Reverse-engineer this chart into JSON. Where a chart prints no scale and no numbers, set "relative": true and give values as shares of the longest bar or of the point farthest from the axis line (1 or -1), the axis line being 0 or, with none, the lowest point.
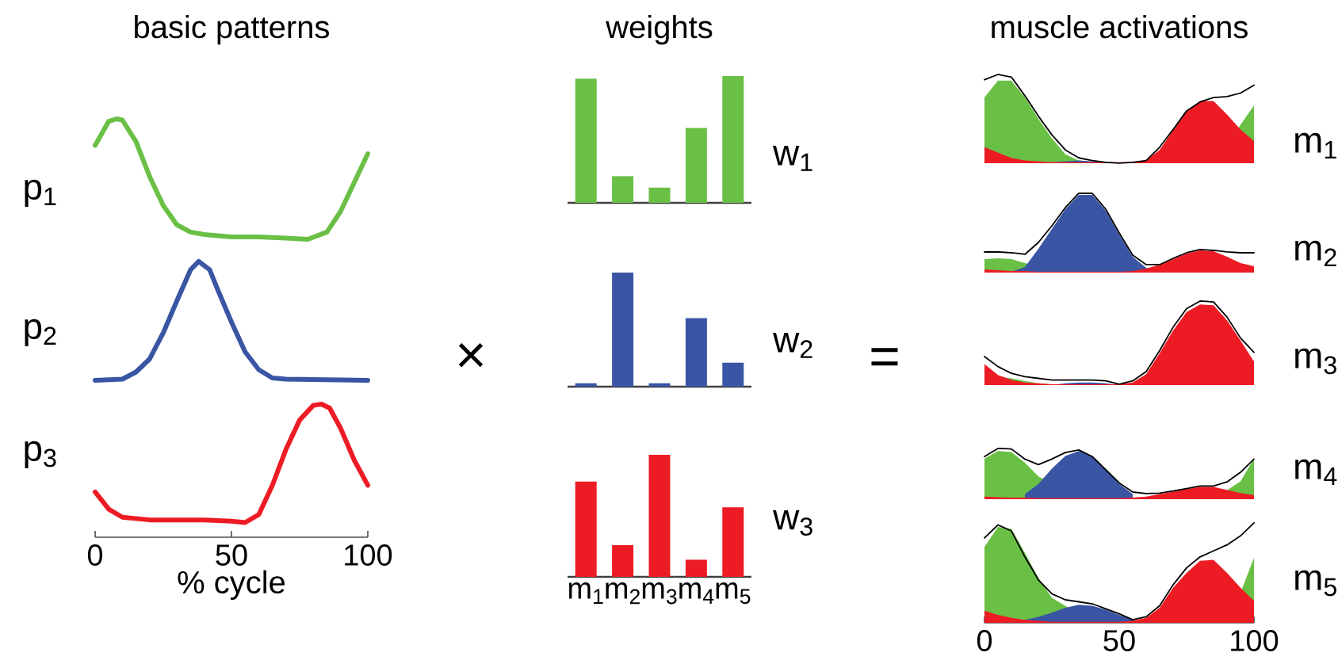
{
  "chart_data": [
    {
      "type": "line",
      "title": "basic patterns",
      "ylabel": "p$_{1}$",
      "relative": true,
      "xlim": [
        0,
        100
      ],
      "tick_labels": false,
      "x": [
        0,
        5,
        8,
        10,
        15,
        20,
        25,
        30,
        35,
        40,
        50,
        60,
        70,
        78,
        85,
        90,
        95,
        100
      ],
      "series": [
        {
          "color": "#6abf45",
          "values": [
            0.78,
            0.98,
            1,
            0.99,
            0.81,
            0.52,
            0.28,
            0.12,
            0.06,
            0.04,
            0.02,
            0.02,
            0.01,
            0,
            0.06,
            0.23,
            0.47,
            0.71
          ]
        }
      ]
    },
    {
      "type": "line",
      "ylabel": "p$_{2}$",
      "relative": true,
      "xlim": [
        0,
        100
      ],
      "tick_labels": false,
      "x": [
        0,
        10,
        15,
        20,
        25,
        30,
        35,
        38,
        42,
        45,
        50,
        55,
        60,
        65,
        70,
        100
      ],
      "series": [
        {
          "color": "#3a55a4",
          "values": [
            0,
            0.01,
            0.07,
            0.18,
            0.4,
            0.67,
            0.93,
            1,
            0.93,
            0.76,
            0.49,
            0.24,
            0.09,
            0.02,
            0.01,
            0
          ]
        }
      ]
    },
    {
      "type": "line",
      "ylabel": "p$_{3}$",
      "xlabel": "% cycle",
      "relative": true,
      "xlim": [
        0,
        100
      ],
      "xticks": [
        0,
        50,
        100
      ],
      "tick_labels": "x",
      "x": [
        0,
        5,
        10,
        20,
        40,
        50,
        55,
        60,
        65,
        70,
        75,
        80,
        83,
        86,
        90,
        95,
        100
      ],
      "series": [
        {
          "color": "#ed1c24",
          "values": [
            0.34,
            0.21,
            0.15,
            0.13,
            0.13,
            0.12,
            0.11,
            0.17,
            0.39,
            0.66,
            0.88,
            0.99,
            1,
            0.97,
            0.82,
            0.58,
            0.39
          ]
        }
      ]
    },
    {
      "type": "bar",
      "title": "weights",
      "y2label": "w$_{1}$",
      "relative": true,
      "categories": [
        null,
        null,
        null,
        null,
        null
      ],
      "color": "#6abf45",
      "values": [
        0.98,
        0.21,
        0.12,
        0.59,
        1
      ]
    },
    {
      "type": "bar",
      "y2label": "w$_{2}$",
      "annotations": [
        "×"
      ],
      "relative": true,
      "categories": [
        null,
        null,
        null,
        null,
        null
      ],
      "color": "#3a55a4",
      "values": [
        0.03,
        1,
        0.03,
        0.6,
        0.21
      ]
    },
    {
      "type": "bar",
      "y2label": "w$_{3}$",
      "relative": true,
      "tick_labels": "x",
      "categories": [
        "m$_{1}$",
        "m$_{2}$",
        "m$_{3}$",
        "m$_{4}$",
        "m$_{5}$"
      ],
      "color": "#ed1c24",
      "values": [
        0.78,
        0.26,
        1,
        0.14,
        0.57
      ]
    },
    {
      "type": "area",
      "title": "muscle activations",
      "y2label": "m$_{1}$",
      "relative": true,
      "xlim": [
        0,
        100
      ],
      "tick_labels": false,
      "x": [
        0,
        5,
        10,
        15,
        20,
        25,
        30,
        35,
        40,
        45,
        50,
        55,
        60,
        65,
        70,
        75,
        80,
        85,
        90,
        95,
        100
      ],
      "series": [
        {
          "color": "#6abf45",
          "x": [
            0,
            5,
            10,
            15,
            20,
            25,
            30,
            35,
            40,
            45,
            50,
            55,
            60,
            65,
            70,
            75,
            80,
            85,
            100
          ],
          "values": [
            0.74,
            0.93,
            0.93,
            0.74,
            0.5,
            0.28,
            0.1,
            0.03,
            0.01,
            0,
            0,
            0,
            0,
            0,
            0,
            0,
            0,
            0,
            0.65
          ]
        },
        {
          "color": "#3a55a4",
          "values": [
            0,
            0,
            0,
            0,
            0,
            0.01,
            0.02,
            0.03,
            0.02,
            0.01,
            0,
            0,
            0,
            0,
            0,
            0,
            0,
            0,
            0,
            0,
            0
          ]
        },
        {
          "color": "#ed1c24",
          "values": [
            0.18,
            0.12,
            0.06,
            0.03,
            0.02,
            0.01,
            0.01,
            0.01,
            0.01,
            0.01,
            0.01,
            0.01,
            0.03,
            0.15,
            0.37,
            0.58,
            0.7,
            0.7,
            0.55,
            0.38,
            0.25
          ]
        },
        {
          "type": "line",
          "color": "#000000",
          "values": [
            0.94,
            1,
            0.97,
            0.76,
            0.53,
            0.32,
            0.15,
            0.06,
            0.03,
            0.01,
            0,
            0.01,
            0.03,
            0.18,
            0.38,
            0.59,
            0.69,
            0.74,
            0.75,
            0.79,
            0.88
          ]
        }
      ]
    },
    {
      "type": "area",
      "y2label": "m$_{2}$",
      "relative": true,
      "xlim": [
        0,
        100
      ],
      "tick_labels": false,
      "x": [
        0,
        5,
        10,
        15,
        20,
        25,
        30,
        35,
        40,
        45,
        50,
        55,
        60,
        65,
        70,
        75,
        80,
        85,
        90,
        95,
        100
      ],
      "series": [
        {
          "color": "#6abf45",
          "x": [
            0,
            5,
            10,
            15,
            30,
            35,
            40,
            45,
            50,
            55,
            60,
            65,
            70,
            75,
            80,
            85,
            90,
            95,
            100
          ],
          "values": [
            0.17,
            0.18,
            0.17,
            0.12,
            0,
            0,
            0,
            0,
            0,
            0,
            0,
            0,
            0,
            0,
            0,
            0,
            0,
            0.02,
            0.05
          ]
        },
        {
          "color": "#3a55a4",
          "values": [
            0,
            0,
            0.01,
            0.07,
            0.3,
            0.55,
            0.8,
            0.98,
            0.98,
            0.78,
            0.48,
            0.2,
            0.06,
            0.01,
            0,
            0,
            0,
            0,
            0,
            0,
            0
          ]
        },
        {
          "color": "#ed1c24",
          "values": [
            0.04,
            0.03,
            0.02,
            0.02,
            0.01,
            0.01,
            0.01,
            0.01,
            0.01,
            0.01,
            0.01,
            0.02,
            0.05,
            0.1,
            0.17,
            0.24,
            0.28,
            0.27,
            0.2,
            0.12,
            0.08
          ]
        },
        {
          "type": "line",
          "color": "#000000",
          "values": [
            0.26,
            0.26,
            0.25,
            0.23,
            0.38,
            0.59,
            0.82,
            1,
            1,
            0.8,
            0.5,
            0.22,
            0.1,
            0.1,
            0.18,
            0.25,
            0.29,
            0.28,
            0.26,
            0.25,
            0.25
          ]
        }
      ]
    },
    {
      "type": "area",
      "y2label": "m$_{3}$",
      "annotations": [
        "="
      ],
      "relative": true,
      "xlim": [
        0,
        100
      ],
      "tick_labels": false,
      "x": [
        0,
        5,
        10,
        15,
        20,
        25,
        30,
        35,
        40,
        45,
        50,
        55,
        60,
        65,
        70,
        75,
        80,
        85,
        90,
        95,
        100
      ],
      "series": [
        {
          "color": "#6abf45",
          "values": [
            0.1,
            0.1,
            0.08,
            0.05,
            0.02,
            0.01,
            0,
            0,
            0,
            0,
            0,
            0,
            0,
            0,
            0,
            0,
            0,
            0,
            0,
            0,
            0
          ]
        },
        {
          "color": "#3a55a4",
          "values": [
            0,
            0,
            0,
            0,
            0,
            0,
            0.02,
            0.03,
            0.03,
            0.02,
            0,
            0,
            0,
            0,
            0,
            0,
            0,
            0,
            0,
            0,
            0
          ]
        },
        {
          "color": "#ed1c24",
          "values": [
            0.25,
            0.12,
            0.06,
            0.03,
            0.02,
            0.01,
            0.01,
            0.01,
            0.01,
            0.01,
            0.01,
            0.03,
            0.13,
            0.38,
            0.65,
            0.87,
            0.96,
            0.95,
            0.77,
            0.53,
            0.28
          ]
        },
        {
          "type": "line",
          "color": "#000000",
          "values": [
            0.34,
            0.22,
            0.14,
            0.1,
            0.08,
            0.06,
            0.06,
            0.06,
            0.06,
            0.05,
            0.01,
            0.05,
            0.16,
            0.41,
            0.69,
            0.91,
            1,
            0.99,
            0.81,
            0.56,
            0.39
          ]
        }
      ]
    },
    {
      "type": "area",
      "y2label": "m$_{4}$",
      "relative": true,
      "xlim": [
        0,
        100
      ],
      "tick_labels": false,
      "x": [
        0,
        5,
        10,
        15,
        20,
        25,
        30,
        35,
        40,
        45,
        50,
        55,
        60,
        65,
        70,
        75,
        80,
        85,
        90,
        95,
        100
      ],
      "series": [
        {
          "color": "#6abf45",
          "x": [
            0,
            5,
            10,
            15,
            20,
            35,
            40,
            45,
            50,
            55,
            60,
            65,
            70,
            75,
            80,
            85,
            95,
            100
          ],
          "values": [
            0.8,
            0.95,
            0.93,
            0.72,
            0.45,
            0.02,
            0,
            0,
            0,
            0,
            0,
            0,
            0,
            0,
            0,
            0,
            0.35,
            0.8
          ]
        },
        {
          "color": "#3a55a4",
          "x": [
            15,
            20,
            25,
            30,
            35,
            40,
            45,
            50,
            55
          ],
          "values": [
            0.1,
            0.3,
            0.6,
            0.85,
            0.95,
            0.85,
            0.58,
            0.3,
            0.1
          ]
        },
        {
          "color": "#ed1c24",
          "values": [
            0.05,
            0.04,
            0.03,
            0.03,
            0.02,
            0.02,
            0.02,
            0.02,
            0.02,
            0.02,
            0.02,
            0.03,
            0.05,
            0.1,
            0.15,
            0.2,
            0.24,
            0.24,
            0.18,
            0.12,
            0.08
          ]
        },
        {
          "type": "line",
          "color": "#000000",
          "values": [
            0.84,
            1,
            0.99,
            0.79,
            0.68,
            0.79,
            0.92,
            0.97,
            0.84,
            0.58,
            0.32,
            0.14,
            0.11,
            0.12,
            0.16,
            0.21,
            0.26,
            0.26,
            0.34,
            0.53,
            0.79
          ]
        }
      ]
    },
    {
      "type": "area",
      "y2label": "m$_{5}$",
      "relative": true,
      "xlim": [
        0,
        100
      ],
      "xticks": [
        0,
        50,
        100
      ],
      "tick_labels": "x",
      "x": [
        0,
        5,
        10,
        15,
        20,
        25,
        30,
        35,
        40,
        45,
        50,
        55,
        60,
        65,
        70,
        75,
        80,
        85,
        90,
        95,
        100
      ],
      "series": [
        {
          "color": "#6abf45",
          "x": [
            0,
            5,
            10,
            15,
            20,
            25,
            40,
            45,
            50,
            55,
            60,
            65,
            70,
            75,
            80,
            85,
            95,
            100
          ],
          "values": [
            0.76,
            0.96,
            0.94,
            0.7,
            0.45,
            0.25,
            0.01,
            0,
            0,
            0,
            0,
            0,
            0,
            0,
            0,
            0,
            0.3,
            0.65
          ]
        },
        {
          "color": "#3a55a4",
          "values": [
            0,
            0,
            0.01,
            0.03,
            0.06,
            0.1,
            0.15,
            0.18,
            0.17,
            0.13,
            0.08,
            0.03,
            0.01,
            0,
            0,
            0,
            0,
            0,
            0,
            0,
            0
          ]
        },
        {
          "color": "#ed1c24",
          "values": [
            0.12,
            0.08,
            0.05,
            0.03,
            0.02,
            0.01,
            0.01,
            0.01,
            0.01,
            0.01,
            0.01,
            0.02,
            0.05,
            0.15,
            0.35,
            0.5,
            0.62,
            0.63,
            0.5,
            0.35,
            0.22
          ]
        },
        {
          "type": "line",
          "color": "#000000",
          "values": [
            0.85,
            0.98,
            0.92,
            0.66,
            0.43,
            0.29,
            0.23,
            0.21,
            0.19,
            0.14,
            0.09,
            0.03,
            0.06,
            0.17,
            0.38,
            0.55,
            0.66,
            0.72,
            0.78,
            0.87,
            1
          ]
        }
      ]
    }
  ]
}
